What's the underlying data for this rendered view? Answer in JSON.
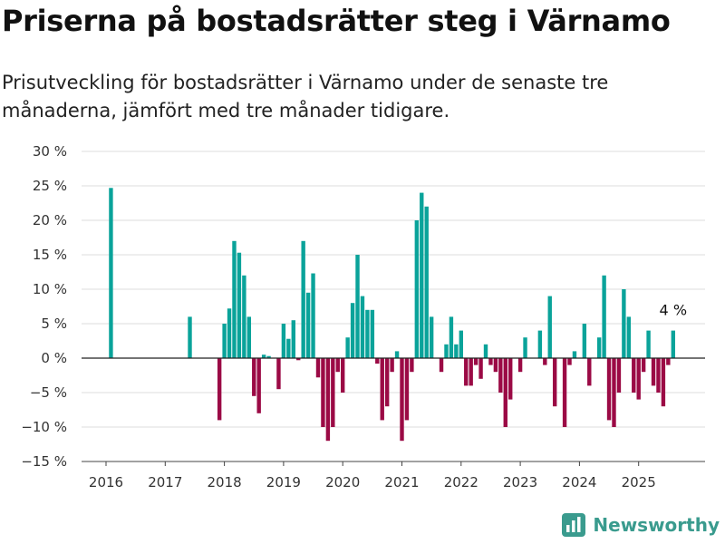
{
  "title": "Priserna på bostadsrätter steg i Värnamo",
  "subtitle": "Prisutveckling för bostadsrätter i Värnamo under de senaste tre månaderna, jämfört med tre månader tidigare.",
  "brand": {
    "name": "Newsworthy",
    "icon": "newsworthy-logo-icon"
  },
  "colors": {
    "positive": "#0aa39a",
    "negative": "#9b0a45",
    "grid": "#dddddd",
    "zero_line": "#222222"
  },
  "chart_data": {
    "type": "bar",
    "x_unit": "month",
    "ylim": [
      -15,
      30
    ],
    "y_ticks": [
      -15,
      -10,
      -5,
      0,
      5,
      10,
      15,
      20,
      25,
      30
    ],
    "y_tick_labels": [
      "−15 %",
      "−10 %",
      "−5 %",
      "0 %",
      "5 %",
      "10 %",
      "15 %",
      "20 %",
      "25 %",
      "30 %"
    ],
    "x_ticks": [
      2016,
      2017,
      2018,
      2019,
      2020,
      2021,
      2022,
      2023,
      2024,
      2025
    ],
    "x_tick_labels": [
      "2016",
      "2017",
      "2018",
      "2019",
      "2020",
      "2021",
      "2022",
      "2023",
      "2024",
      "2025"
    ],
    "grid": true,
    "annotation": {
      "label": "4 %",
      "x": "2025-08",
      "y": 4
    },
    "values": [
      {
        "x": "2016-02",
        "y": 24.7
      },
      {
        "x": "2017-06",
        "y": 6
      },
      {
        "x": "2017-12",
        "y": -9
      },
      {
        "x": "2018-01",
        "y": 5
      },
      {
        "x": "2018-02",
        "y": 7.2
      },
      {
        "x": "2018-03",
        "y": 17
      },
      {
        "x": "2018-04",
        "y": 15.3
      },
      {
        "x": "2018-05",
        "y": 12
      },
      {
        "x": "2018-06",
        "y": 6
      },
      {
        "x": "2018-07",
        "y": -5.5
      },
      {
        "x": "2018-08",
        "y": -8
      },
      {
        "x": "2018-09",
        "y": 0.5
      },
      {
        "x": "2018-10",
        "y": 0.3
      },
      {
        "x": "2018-12",
        "y": -4.5
      },
      {
        "x": "2019-01",
        "y": 5
      },
      {
        "x": "2019-02",
        "y": 2.8
      },
      {
        "x": "2019-03",
        "y": 5.5
      },
      {
        "x": "2019-04",
        "y": -0.3
      },
      {
        "x": "2019-05",
        "y": 17
      },
      {
        "x": "2019-06",
        "y": 9.5
      },
      {
        "x": "2019-07",
        "y": 12.3
      },
      {
        "x": "2019-08",
        "y": -2.8
      },
      {
        "x": "2019-09",
        "y": -10
      },
      {
        "x": "2019-10",
        "y": -12
      },
      {
        "x": "2019-11",
        "y": -10
      },
      {
        "x": "2019-12",
        "y": -2
      },
      {
        "x": "2020-01",
        "y": -5
      },
      {
        "x": "2020-02",
        "y": 3
      },
      {
        "x": "2020-03",
        "y": 8
      },
      {
        "x": "2020-04",
        "y": 15
      },
      {
        "x": "2020-05",
        "y": 9
      },
      {
        "x": "2020-06",
        "y": 7
      },
      {
        "x": "2020-07",
        "y": 7
      },
      {
        "x": "2020-08",
        "y": -0.8
      },
      {
        "x": "2020-09",
        "y": -9
      },
      {
        "x": "2020-10",
        "y": -7
      },
      {
        "x": "2020-11",
        "y": -2
      },
      {
        "x": "2020-12",
        "y": 1
      },
      {
        "x": "2021-01",
        "y": -12
      },
      {
        "x": "2021-02",
        "y": -9
      },
      {
        "x": "2021-03",
        "y": -2
      },
      {
        "x": "2021-04",
        "y": 20
      },
      {
        "x": "2021-05",
        "y": 24
      },
      {
        "x": "2021-06",
        "y": 22
      },
      {
        "x": "2021-07",
        "y": 6
      },
      {
        "x": "2021-09",
        "y": -2
      },
      {
        "x": "2021-10",
        "y": 2
      },
      {
        "x": "2021-11",
        "y": 6
      },
      {
        "x": "2021-12",
        "y": 2
      },
      {
        "x": "2022-01",
        "y": 4
      },
      {
        "x": "2022-02",
        "y": -4
      },
      {
        "x": "2022-03",
        "y": -4
      },
      {
        "x": "2022-04",
        "y": -1
      },
      {
        "x": "2022-05",
        "y": -3
      },
      {
        "x": "2022-06",
        "y": 2
      },
      {
        "x": "2022-07",
        "y": -1
      },
      {
        "x": "2022-08",
        "y": -2
      },
      {
        "x": "2022-09",
        "y": -5
      },
      {
        "x": "2022-10",
        "y": -10
      },
      {
        "x": "2022-11",
        "y": -6
      },
      {
        "x": "2023-01",
        "y": -2
      },
      {
        "x": "2023-02",
        "y": 3
      },
      {
        "x": "2023-05",
        "y": 4
      },
      {
        "x": "2023-06",
        "y": -1
      },
      {
        "x": "2023-07",
        "y": 9
      },
      {
        "x": "2023-08",
        "y": -7
      },
      {
        "x": "2023-10",
        "y": -10
      },
      {
        "x": "2023-11",
        "y": -1
      },
      {
        "x": "2023-12",
        "y": 1
      },
      {
        "x": "2024-02",
        "y": 5
      },
      {
        "x": "2024-03",
        "y": -4
      },
      {
        "x": "2024-05",
        "y": 3
      },
      {
        "x": "2024-06",
        "y": 12
      },
      {
        "x": "2024-07",
        "y": -9
      },
      {
        "x": "2024-08",
        "y": -10
      },
      {
        "x": "2024-09",
        "y": -5
      },
      {
        "x": "2024-10",
        "y": 10
      },
      {
        "x": "2024-11",
        "y": 6
      },
      {
        "x": "2024-12",
        "y": -5
      },
      {
        "x": "2025-01",
        "y": -6
      },
      {
        "x": "2025-02",
        "y": -2
      },
      {
        "x": "2025-03",
        "y": 4
      },
      {
        "x": "2025-04",
        "y": -4
      },
      {
        "x": "2025-05",
        "y": -5
      },
      {
        "x": "2025-06",
        "y": -7
      },
      {
        "x": "2025-07",
        "y": -1
      },
      {
        "x": "2025-08",
        "y": 4
      }
    ]
  }
}
